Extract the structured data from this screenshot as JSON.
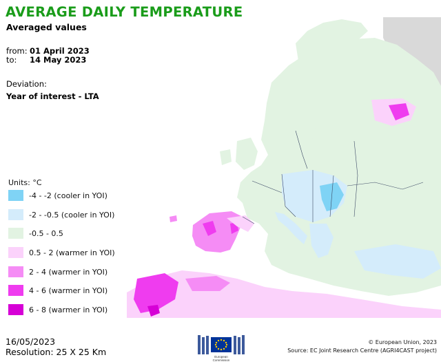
{
  "header": {
    "title": "AVERAGE DAILY TEMPERATURE",
    "subtitle": "Averaged values"
  },
  "period": {
    "from_label": "from:",
    "from_value": "01 April 2023",
    "to_label": "to:",
    "to_value": "14 May 2023"
  },
  "deviation": {
    "label": "Deviation:",
    "value": "Year of interest - LTA"
  },
  "legend": {
    "units": "Units: °C",
    "classes": [
      {
        "label": "-4 - -2 (cooler in YOI)",
        "color": "#7fd3f5"
      },
      {
        "label": "-2 - -0.5 (cooler in YOI)",
        "color": "#d4ecfb"
      },
      {
        "label": "-0.5 - 0.5",
        "color": "#e2f3e2"
      },
      {
        "label": "0.5 - 2 (warmer in YOI)",
        "color": "#fbd2fb"
      },
      {
        "label": "2 - 4 (warmer in YOI)",
        "color": "#f58cf5"
      },
      {
        "label": "4 - 6 (warmer in YOI)",
        "color": "#ef3cef"
      },
      {
        "label": "6 - 8 (warmer in YOI)",
        "color": "#d600d6"
      }
    ]
  },
  "colors": {
    "title": "#1a9c1a",
    "sea": "#ffffff",
    "no_data": "#d9d9d9",
    "borders": "#3d4a66"
  },
  "footer": {
    "date": "16/05/2023",
    "resolution": "Resolution: 25 X 25 Km",
    "copyright": "© European Union, 2023",
    "source": "Source: EC Joint Research Centre (AGRI4CAST project)",
    "logo_caption_1": "European",
    "logo_caption_2": "Commission"
  }
}
